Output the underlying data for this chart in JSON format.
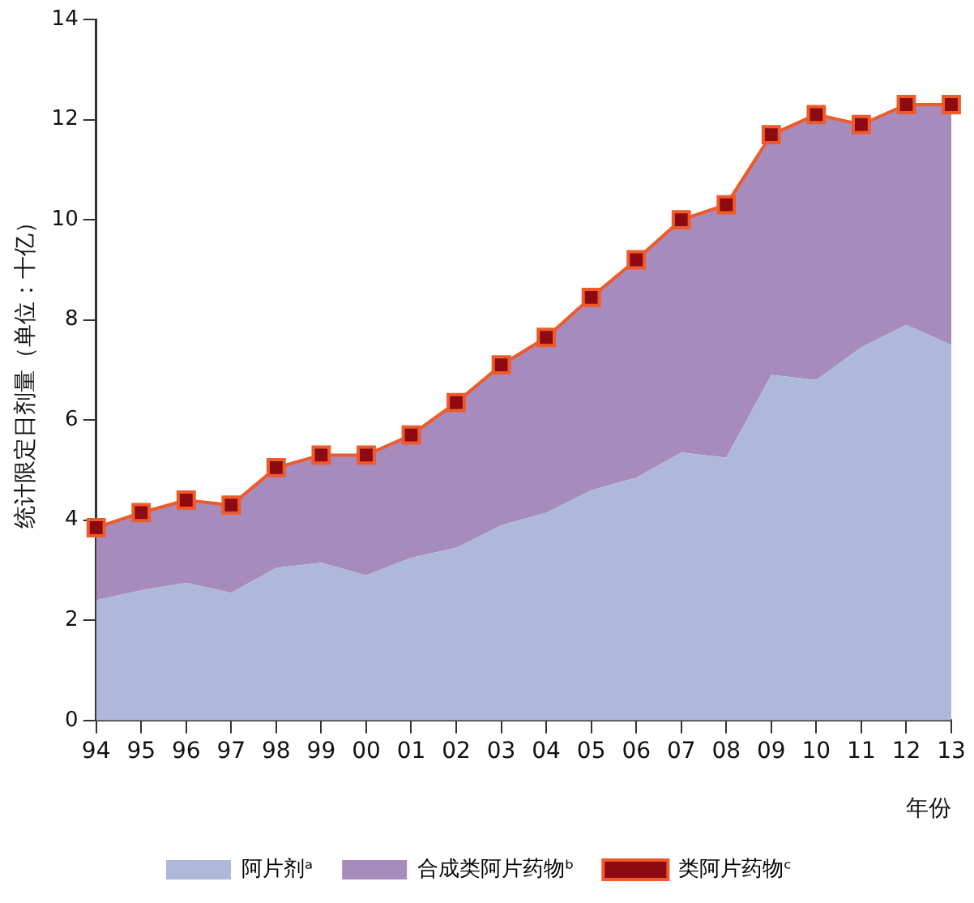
{
  "chart_data": {
    "type": "area",
    "stacked": true,
    "ylabel": "统计限定日剂量（单位：十亿）",
    "xlabel": "年份",
    "categories": [
      "94",
      "95",
      "96",
      "97",
      "98",
      "99",
      "00",
      "01",
      "02",
      "03",
      "04",
      "05",
      "06",
      "07",
      "08",
      "09",
      "10",
      "11",
      "12",
      "13"
    ],
    "ylim": [
      0,
      14
    ],
    "yticks": [
      0,
      2,
      4,
      6,
      8,
      10,
      12,
      14
    ],
    "legend": "bottom",
    "grid": false,
    "series": [
      {
        "name": "阿片剂ᵃ",
        "color": "#aeb8db",
        "values": [
          2.4,
          2.6,
          2.75,
          2.55,
          3.05,
          3.15,
          2.9,
          3.25,
          3.45,
          3.9,
          4.15,
          4.6,
          4.85,
          5.35,
          5.25,
          6.9,
          6.8,
          7.45,
          7.9,
          7.5
        ]
      },
      {
        "name": "合成类阿片药物ᵇ",
        "color": "#a78bbd",
        "values": [
          1.45,
          1.55,
          1.65,
          1.75,
          2.0,
          2.15,
          2.4,
          2.45,
          2.9,
          3.2,
          3.5,
          3.85,
          4.35,
          4.65,
          5.05,
          4.8,
          5.3,
          4.45,
          4.4,
          4.8
        ]
      },
      {
        "name": "类阿片药物ᶜ",
        "type": "line",
        "color": "#ef5a2a",
        "marker": "square",
        "values": [
          3.85,
          4.15,
          4.4,
          4.3,
          5.05,
          5.3,
          5.3,
          5.7,
          6.35,
          7.1,
          7.65,
          8.45,
          9.2,
          10.0,
          10.3,
          11.7,
          12.1,
          11.9,
          12.3,
          12.3
        ]
      }
    ]
  }
}
